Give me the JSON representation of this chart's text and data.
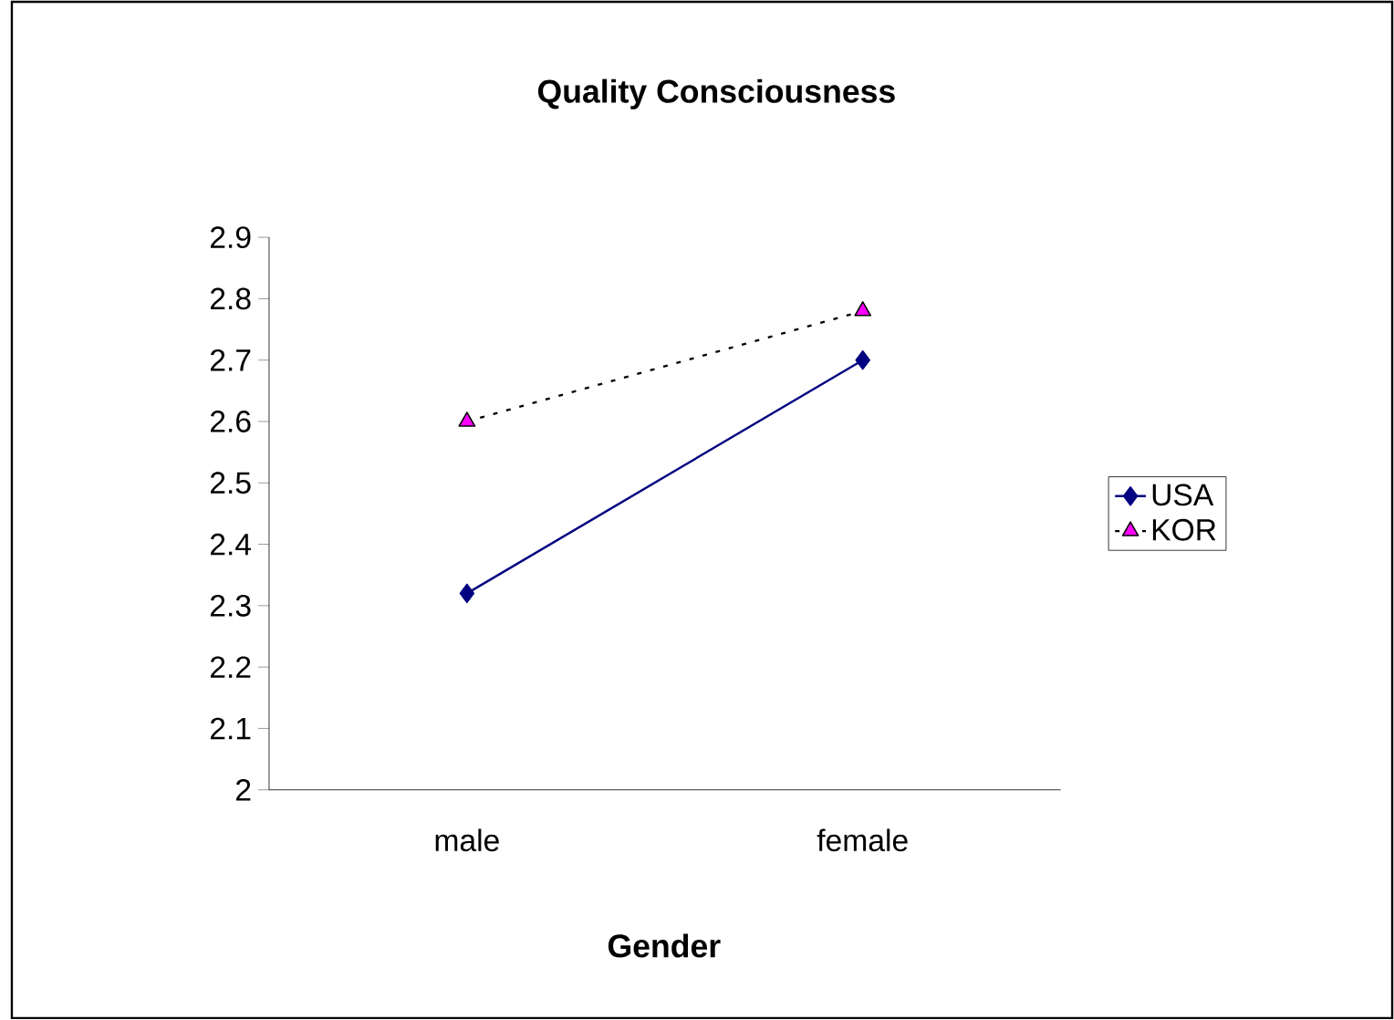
{
  "chart_data": {
    "type": "line",
    "title": "Quality Consciousness",
    "xlabel": "Gender",
    "categories": [
      "male",
      "female"
    ],
    "series": [
      {
        "name": "USA",
        "color": "#000080",
        "values": [
          2.32,
          2.7
        ],
        "marker": "diamond",
        "line_style": "solid"
      },
      {
        "name": "KOR",
        "color": "#ff00ff",
        "values": [
          2.6,
          2.78
        ],
        "marker": "triangle",
        "line_style": "dotted"
      }
    ],
    "ylim": [
      2,
      2.9
    ],
    "yticks": [
      2,
      2.1,
      2.2,
      2.3,
      2.4,
      2.5,
      2.6,
      2.7,
      2.8,
      2.9
    ],
    "grid": false,
    "legend": "right"
  }
}
